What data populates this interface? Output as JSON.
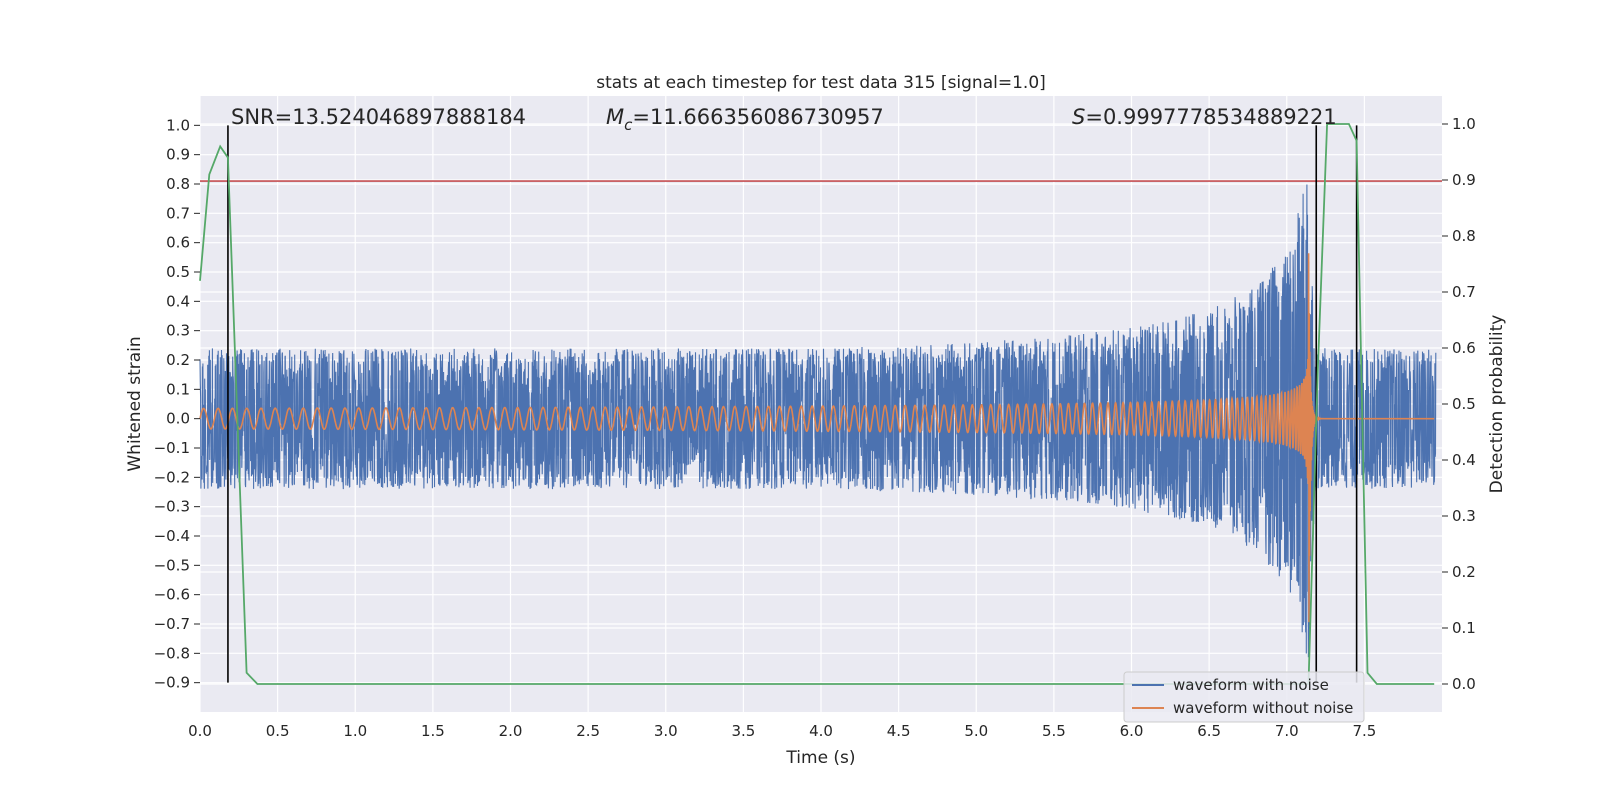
{
  "chart_data": {
    "type": "line",
    "title": "stats at each timestep for test data 315 [signal=1.0]",
    "xlabel": "Time (s)",
    "ylabel_left": "Whitened strain",
    "ylabel_right": "Detection probability",
    "xlim": [
      0.0,
      8.0
    ],
    "ylim_left": [
      -1.0,
      1.1
    ],
    "ylim_right": [
      -0.05,
      1.05
    ],
    "x_ticks": [
      "0.0",
      "0.5",
      "1.0",
      "1.5",
      "2.0",
      "2.5",
      "3.0",
      "3.5",
      "4.0",
      "4.5",
      "5.0",
      "5.5",
      "6.0",
      "6.5",
      "7.0",
      "7.5"
    ],
    "y_ticks_left": [
      "−0.9",
      "−0.8",
      "−0.7",
      "−0.6",
      "−0.5",
      "−0.4",
      "−0.3",
      "−0.2",
      "−0.1",
      "0.0",
      "0.1",
      "0.2",
      "0.3",
      "0.4",
      "0.5",
      "0.6",
      "0.7",
      "0.8",
      "0.9",
      "1.0"
    ],
    "y_ticks_right": [
      "0.0",
      "0.1",
      "0.2",
      "0.3",
      "0.4",
      "0.5",
      "0.6",
      "0.7",
      "0.8",
      "0.9",
      "1.0"
    ],
    "grid": true,
    "legend_position": "bottom-right",
    "annotations": {
      "snr_text": "SNR=13.524046897888184",
      "mc_symbol": "M",
      "mc_sub": "c",
      "mc_value": "=11.666356086730957",
      "s_symbol": "S",
      "s_value": "=0.9997778534889221"
    },
    "series": [
      {
        "name": "waveform with noise",
        "color": "#4c72b0",
        "axis": "left",
        "description_points": {
          "envelope_t": [
            0.0,
            1.0,
            2.0,
            3.0,
            4.0,
            5.0,
            5.5,
            6.0,
            6.5,
            6.8,
            7.0,
            7.1,
            7.14,
            7.18,
            8.0
          ],
          "envelope_amp": [
            0.24,
            0.24,
            0.24,
            0.24,
            0.24,
            0.26,
            0.28,
            0.31,
            0.37,
            0.45,
            0.57,
            0.75,
            0.98,
            0.24,
            0.24
          ]
        }
      },
      {
        "name": "waveform without noise",
        "color": "#dd8452",
        "axis": "left",
        "chirp": {
          "t_merge": 7.14,
          "amp_early": 0.035,
          "amp_peak": 0.95,
          "n_cycles_first_second": 11
        }
      },
      {
        "name": "detection probability",
        "color": "#55a868",
        "axis": "right",
        "x": [
          0.0,
          0.06,
          0.13,
          0.18,
          0.3,
          0.37,
          7.08,
          7.14,
          7.2,
          7.26,
          7.4,
          7.45,
          7.52,
          7.58,
          7.95
        ],
        "y": [
          0.72,
          0.91,
          0.96,
          0.94,
          0.02,
          0.0,
          0.0,
          0.0,
          0.56,
          1.0,
          1.0,
          0.97,
          0.02,
          0.0,
          0.0
        ]
      }
    ],
    "threshold_line": {
      "value_left": 0.81,
      "color": "#c44e52"
    },
    "vertical_markers": [
      0.18,
      7.19,
      7.45
    ],
    "colors": {
      "plot_bg": "#eaeaf2",
      "grid": "#ffffff",
      "noise": "#4c72b0",
      "clean": "#dd8452",
      "prob": "#55a868",
      "threshold": "#c44e52",
      "marker": "#000000"
    }
  }
}
